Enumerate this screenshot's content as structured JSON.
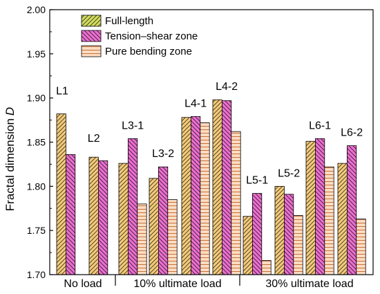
{
  "chart_data": {
    "type": "bar",
    "ylabel": "Fractal dimension",
    "ylabel_italic": "D",
    "ylim": [
      1.7,
      2.0
    ],
    "yticks": [
      "1.70",
      "1.75",
      "1.80",
      "1.85",
      "1.90",
      "1.95",
      "2.00"
    ],
    "grid": false,
    "legend_position": "top-left",
    "legend": [
      {
        "key": "full",
        "name": "Full-length",
        "color": "#d2dc60",
        "hatch": "back"
      },
      {
        "key": "tension",
        "name": "Tension–shear zone",
        "color": "#ec6fd0",
        "hatch": "forward"
      },
      {
        "key": "pure",
        "name": "Pure bending zone",
        "color": "#fbdcc2",
        "hatch": "horizontal"
      }
    ],
    "bar_colors": {
      "full": "#f5c97b",
      "tension": "#ec6fd0",
      "pure": "#fbdcc2"
    },
    "groups": [
      "No load",
      "10% ultimate load",
      "30% ultimate load"
    ],
    "specimens": [
      {
        "label": "L1",
        "group": 0,
        "values": {
          "full": 1.882,
          "tension": 1.836,
          "pure": null
        }
      },
      {
        "label": "L2",
        "group": 0,
        "values": {
          "full": 1.833,
          "tension": 1.829,
          "pure": null
        }
      },
      {
        "label": "L3-1",
        "group": 1,
        "values": {
          "full": 1.826,
          "tension": 1.854,
          "pure": 1.78
        }
      },
      {
        "label": "L3-2",
        "group": 1,
        "values": {
          "full": 1.809,
          "tension": 1.822,
          "pure": 1.785
        }
      },
      {
        "label": "L4-1",
        "group": 1,
        "values": {
          "full": 1.878,
          "tension": 1.879,
          "pure": 1.872
        }
      },
      {
        "label": "L4-2",
        "group": 1,
        "values": {
          "full": 1.898,
          "tension": 1.897,
          "pure": 1.862
        }
      },
      {
        "label": "L5-1",
        "group": 2,
        "values": {
          "full": 1.766,
          "tension": 1.792,
          "pure": 1.716
        }
      },
      {
        "label": "L5-2",
        "group": 2,
        "values": {
          "full": 1.8,
          "tension": 1.791,
          "pure": 1.767
        }
      },
      {
        "label": "L6-1",
        "group": 2,
        "values": {
          "full": 1.851,
          "tension": 1.854,
          "pure": 1.822
        }
      },
      {
        "label": "L6-2",
        "group": 2,
        "values": {
          "full": 1.826,
          "tension": 1.846,
          "pure": 1.763
        }
      }
    ]
  }
}
